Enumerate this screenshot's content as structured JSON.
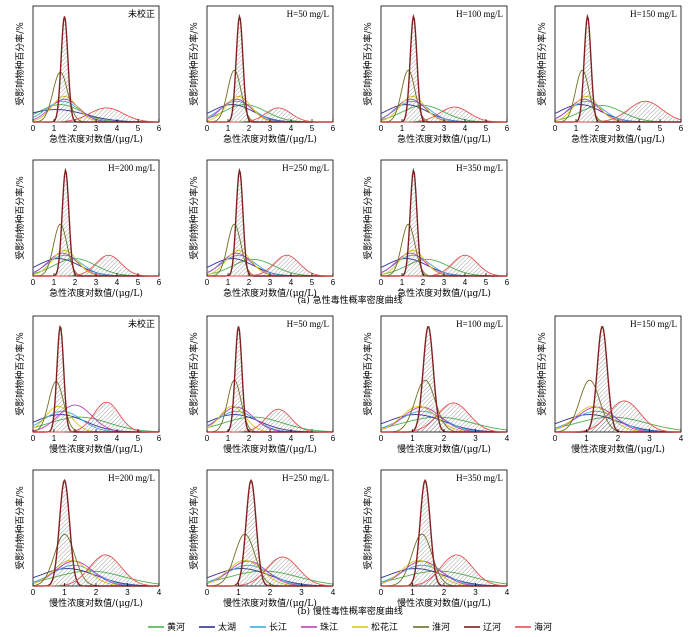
{
  "figure": {
    "caption_a": "(a)  急性毒性概率密度曲线",
    "caption_b": "(b)  慢性毒性概率密度曲线"
  },
  "chart_data": {
    "type": "line",
    "ylabel": "受影响物种百分率/%",
    "xlabel_acute": "急性浓度对数值/(μg/L)",
    "xlabel_chronic": "慢性浓度对数值/(μg/L)",
    "legend": [
      {
        "name": "黄河",
        "color": "#4db34d"
      },
      {
        "name": "太湖",
        "color": "#303090"
      },
      {
        "name": "长江",
        "color": "#40a8e0"
      },
      {
        "name": "珠江",
        "color": "#c040c0"
      },
      {
        "name": "松花江",
        "color": "#d8c820"
      },
      {
        "name": "淮河",
        "color": "#707020"
      },
      {
        "name": "辽河",
        "color": "#802020"
      },
      {
        "name": "海河",
        "color": "#e85050"
      }
    ],
    "panels": [
      {
        "label": "未校正",
        "kind": "acute",
        "xmax": 6,
        "xticks": [
          0,
          1,
          2,
          3,
          4,
          5,
          6
        ],
        "curves": [
          [
            1.3,
            1.0,
            0.42
          ],
          [
            1.1,
            1.4,
            0.3
          ],
          [
            1.4,
            0.8,
            0.5
          ],
          [
            1.5,
            0.7,
            0.55
          ],
          [
            1.5,
            0.6,
            0.62
          ],
          [
            1.3,
            0.35,
            1.2
          ],
          [
            1.5,
            0.16,
            2.55
          ],
          [
            3.5,
            0.8,
            0.34
          ]
        ]
      },
      {
        "label": "H=50 mg/L",
        "kind": "acute",
        "xmax": 6,
        "xticks": [
          0,
          1,
          2,
          3,
          4,
          5,
          6
        ],
        "curves": [
          [
            1.8,
            1.0,
            0.42
          ],
          [
            1.2,
            1.0,
            0.42
          ],
          [
            1.4,
            0.8,
            0.5
          ],
          [
            1.4,
            0.7,
            0.55
          ],
          [
            1.5,
            0.6,
            0.62
          ],
          [
            1.3,
            0.32,
            1.25
          ],
          [
            1.55,
            0.16,
            2.55
          ],
          [
            3.4,
            0.6,
            0.34
          ]
        ]
      },
      {
        "label": "H=100 mg/L",
        "kind": "acute",
        "xmax": 6,
        "xticks": [
          0,
          1,
          2,
          3,
          4,
          5,
          6
        ],
        "curves": [
          [
            2.0,
            1.0,
            0.4
          ],
          [
            1.2,
            1.0,
            0.42
          ],
          [
            1.5,
            0.8,
            0.5
          ],
          [
            1.4,
            0.7,
            0.55
          ],
          [
            1.5,
            0.6,
            0.62
          ],
          [
            1.3,
            0.32,
            1.25
          ],
          [
            1.55,
            0.16,
            2.55
          ],
          [
            3.5,
            0.7,
            0.36
          ]
        ]
      },
      {
        "label": "H=150 mg/L",
        "kind": "acute",
        "xmax": 6,
        "xticks": [
          0,
          1,
          2,
          3,
          4,
          5,
          6
        ],
        "curves": [
          [
            2.2,
            1.0,
            0.4
          ],
          [
            1.2,
            1.0,
            0.42
          ],
          [
            1.5,
            0.8,
            0.5
          ],
          [
            1.4,
            0.7,
            0.55
          ],
          [
            1.5,
            0.6,
            0.62
          ],
          [
            1.3,
            0.32,
            1.25
          ],
          [
            1.55,
            0.16,
            2.55
          ],
          [
            4.3,
            0.8,
            0.5
          ]
        ]
      },
      {
        "label": "H=200 mg/L",
        "kind": "acute",
        "xmax": 6,
        "xticks": [
          0,
          1,
          2,
          3,
          4,
          5,
          6
        ],
        "curves": [
          [
            2.0,
            1.0,
            0.42
          ],
          [
            1.2,
            1.0,
            0.42
          ],
          [
            1.5,
            0.8,
            0.5
          ],
          [
            1.4,
            0.7,
            0.55
          ],
          [
            1.5,
            0.6,
            0.62
          ],
          [
            1.3,
            0.32,
            1.25
          ],
          [
            1.55,
            0.16,
            2.55
          ],
          [
            3.6,
            0.6,
            0.5
          ]
        ]
      },
      {
        "label": "H=250 mg/L",
        "kind": "acute",
        "xmax": 6,
        "xticks": [
          0,
          1,
          2,
          3,
          4,
          5,
          6
        ],
        "curves": [
          [
            2.2,
            1.0,
            0.4
          ],
          [
            1.2,
            1.0,
            0.42
          ],
          [
            1.5,
            0.8,
            0.5
          ],
          [
            1.4,
            0.7,
            0.55
          ],
          [
            1.5,
            0.6,
            0.62
          ],
          [
            1.3,
            0.32,
            1.25
          ],
          [
            1.55,
            0.16,
            2.55
          ],
          [
            3.8,
            0.6,
            0.5
          ]
        ]
      },
      {
        "label": "H=350 mg/L",
        "kind": "acute",
        "xmax": 6,
        "xticks": [
          0,
          1,
          2,
          3,
          4,
          5,
          6
        ],
        "curves": [
          [
            2.2,
            1.0,
            0.4
          ],
          [
            1.2,
            1.0,
            0.42
          ],
          [
            1.5,
            0.8,
            0.5
          ],
          [
            1.4,
            0.7,
            0.55
          ],
          [
            1.5,
            0.6,
            0.62
          ],
          [
            1.3,
            0.32,
            1.25
          ],
          [
            1.55,
            0.16,
            2.55
          ],
          [
            4.0,
            0.6,
            0.5
          ]
        ]
      },
      {
        "label": "未校正",
        "kind": "chronic",
        "xmax": 6,
        "xticks": [
          0,
          1,
          2,
          3,
          4,
          5,
          6
        ],
        "curves": [
          [
            2.2,
            1.4,
            0.36
          ],
          [
            1.3,
            1.2,
            0.42
          ],
          [
            1.4,
            0.9,
            0.5
          ],
          [
            2.0,
            0.8,
            0.65
          ],
          [
            1.2,
            0.6,
            0.62
          ],
          [
            1.1,
            0.35,
            1.22
          ],
          [
            1.3,
            0.16,
            2.55
          ],
          [
            3.5,
            0.6,
            0.72
          ]
        ]
      },
      {
        "label": "H=50 mg/L",
        "kind": "chronic",
        "xmax": 6,
        "xticks": [
          0,
          1,
          2,
          3,
          4,
          5,
          6
        ],
        "curves": [
          [
            2.2,
            1.4,
            0.36
          ],
          [
            1.3,
            1.2,
            0.42
          ],
          [
            1.4,
            0.9,
            0.5
          ],
          [
            1.4,
            0.8,
            0.6
          ],
          [
            1.2,
            0.6,
            0.62
          ],
          [
            1.3,
            0.32,
            1.25
          ],
          [
            1.5,
            0.16,
            2.55
          ],
          [
            3.4,
            0.6,
            0.55
          ]
        ]
      },
      {
        "label": "H=100 mg/L",
        "kind": "chronic",
        "xmax": 4,
        "xticks": [
          0,
          1,
          2,
          3,
          4
        ],
        "curves": [
          [
            1.8,
            1.1,
            0.36
          ],
          [
            1.1,
            0.9,
            0.42
          ],
          [
            1.3,
            0.7,
            0.5
          ],
          [
            1.3,
            0.6,
            0.6
          ],
          [
            1.2,
            0.55,
            0.62
          ],
          [
            1.4,
            0.32,
            1.25
          ],
          [
            1.5,
            0.16,
            2.55
          ],
          [
            2.3,
            0.5,
            0.7
          ]
        ]
      },
      {
        "label": "H=150 mg/L",
        "kind": "chronic",
        "xmax": 4,
        "xticks": [
          0,
          1,
          2,
          3,
          4
        ],
        "curves": [
          [
            1.8,
            1.1,
            0.36
          ],
          [
            1.1,
            0.9,
            0.42
          ],
          [
            1.3,
            0.7,
            0.5
          ],
          [
            1.3,
            0.6,
            0.6
          ],
          [
            1.2,
            0.55,
            0.62
          ],
          [
            1.1,
            0.32,
            1.25
          ],
          [
            1.5,
            0.16,
            2.55
          ],
          [
            2.2,
            0.5,
            0.75
          ]
        ]
      },
      {
        "label": "H=200 mg/L",
        "kind": "chronic",
        "xmax": 4,
        "xticks": [
          0,
          1,
          2,
          3,
          4
        ],
        "curves": [
          [
            1.8,
            1.1,
            0.36
          ],
          [
            1.1,
            0.9,
            0.42
          ],
          [
            1.3,
            0.7,
            0.5
          ],
          [
            1.3,
            0.6,
            0.6
          ],
          [
            1.2,
            0.55,
            0.62
          ],
          [
            1.0,
            0.32,
            1.25
          ],
          [
            1.0,
            0.16,
            2.55
          ],
          [
            2.3,
            0.5,
            0.75
          ]
        ]
      },
      {
        "label": "H=250 mg/L",
        "kind": "chronic",
        "xmax": 4,
        "xticks": [
          0,
          1,
          2,
          3,
          4
        ],
        "curves": [
          [
            1.8,
            1.1,
            0.36
          ],
          [
            1.1,
            0.9,
            0.42
          ],
          [
            1.3,
            0.7,
            0.5
          ],
          [
            1.3,
            0.6,
            0.6
          ],
          [
            1.2,
            0.55,
            0.62
          ],
          [
            1.2,
            0.32,
            1.25
          ],
          [
            1.4,
            0.16,
            2.55
          ],
          [
            2.4,
            0.5,
            0.7
          ]
        ]
      },
      {
        "label": "H=350 mg/L",
        "kind": "chronic",
        "xmax": 4,
        "xticks": [
          0,
          1,
          2,
          3,
          4
        ],
        "curves": [
          [
            1.8,
            1.1,
            0.36
          ],
          [
            1.1,
            0.9,
            0.42
          ],
          [
            1.3,
            0.7,
            0.5
          ],
          [
            1.3,
            0.6,
            0.6
          ],
          [
            1.2,
            0.55,
            0.62
          ],
          [
            1.3,
            0.32,
            1.25
          ],
          [
            1.4,
            0.16,
            2.55
          ],
          [
            2.4,
            0.5,
            0.75
          ]
        ]
      }
    ]
  }
}
